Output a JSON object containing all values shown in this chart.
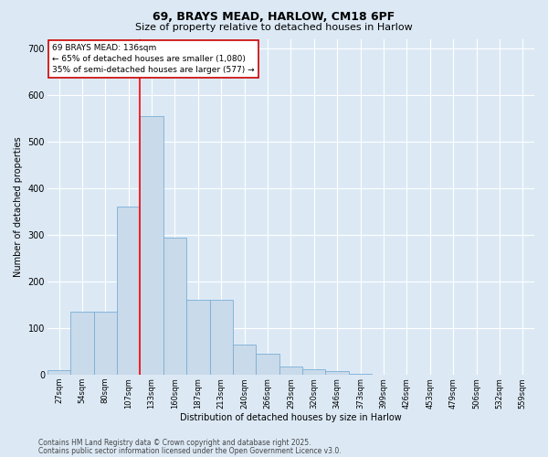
{
  "title_line1": "69, BRAYS MEAD, HARLOW, CM18 6PF",
  "title_line2": "Size of property relative to detached houses in Harlow",
  "xlabel": "Distribution of detached houses by size in Harlow",
  "ylabel": "Number of detached properties",
  "bar_values": [
    10,
    135,
    135,
    360,
    555,
    295,
    160,
    160,
    65,
    45,
    18,
    12,
    8,
    3,
    1,
    0,
    0,
    0,
    0,
    0,
    0
  ],
  "bin_labels": [
    "27sqm",
    "54sqm",
    "80sqm",
    "107sqm",
    "133sqm",
    "160sqm",
    "187sqm",
    "213sqm",
    "240sqm",
    "266sqm",
    "293sqm",
    "320sqm",
    "346sqm",
    "373sqm",
    "399sqm",
    "426sqm",
    "453sqm",
    "479sqm",
    "506sqm",
    "532sqm",
    "559sqm"
  ],
  "bar_color": "#c9daea",
  "bar_edge_color": "#7aaed6",
  "background_color": "#dce9f5",
  "plot_bg_color": "#dce9f5",
  "grid_color": "#ffffff",
  "red_line_bin_index": 4,
  "annotation_text": "69 BRAYS MEAD: 136sqm\n← 65% of detached houses are smaller (1,080)\n35% of semi-detached houses are larger (577) →",
  "annotation_box_color": "#ffffff",
  "annotation_box_edge": "#cc0000",
  "footer_line1": "Contains HM Land Registry data © Crown copyright and database right 2025.",
  "footer_line2": "Contains public sector information licensed under the Open Government Licence v3.0.",
  "ylim": [
    0,
    720
  ],
  "yticks": [
    0,
    100,
    200,
    300,
    400,
    500,
    600,
    700
  ],
  "title1_fontsize": 9,
  "title2_fontsize": 8,
  "tick_fontsize": 6,
  "label_fontsize": 7,
  "annotation_fontsize": 6.5,
  "footer_fontsize": 5.5
}
